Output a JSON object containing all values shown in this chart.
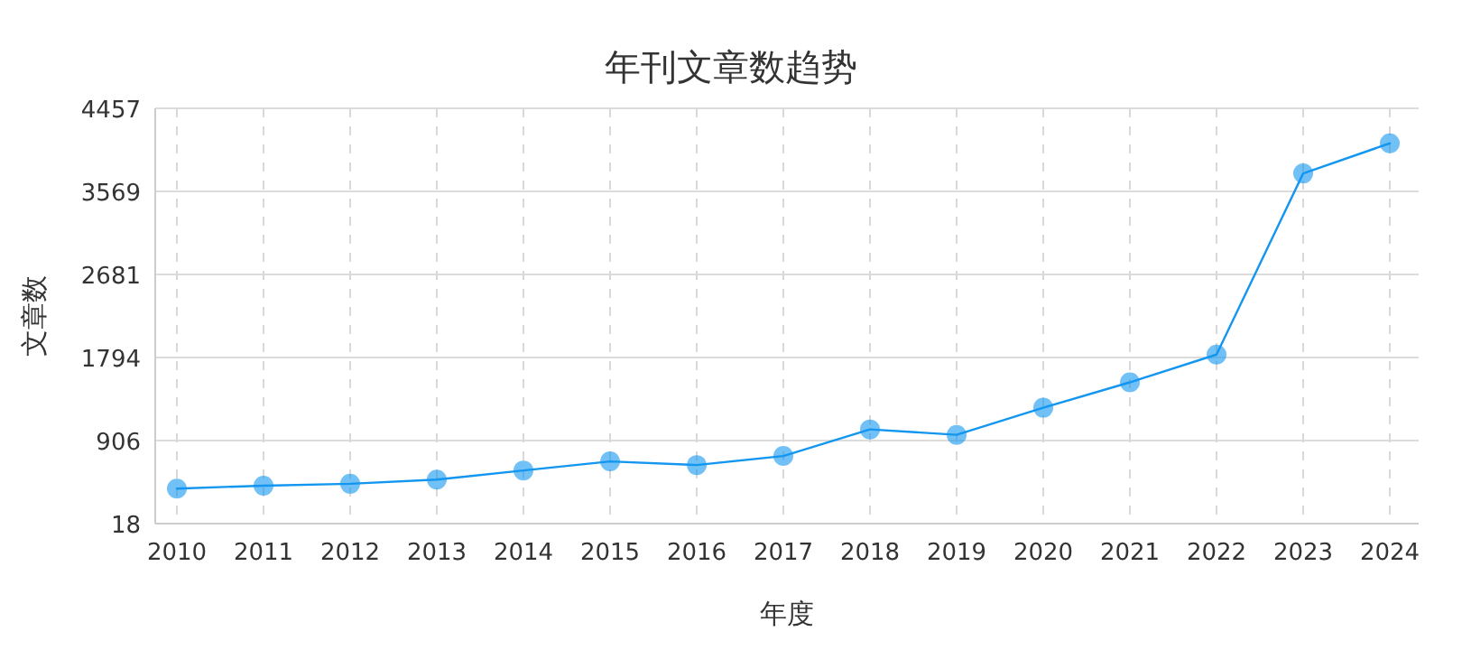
{
  "chart_data": {
    "type": "line",
    "title": "年刊文章数趋势",
    "xlabel": "年度",
    "ylabel": "文章数",
    "categories": [
      "2010",
      "2011",
      "2012",
      "2013",
      "2014",
      "2015",
      "2016",
      "2017",
      "2018",
      "2019",
      "2020",
      "2021",
      "2022",
      "2023",
      "2024"
    ],
    "series": [
      {
        "color": "#1296f0",
        "values": [
          392,
          424,
          444,
          489,
          586,
          683,
          644,
          741,
          1025,
          967,
          1257,
          1528,
          1825,
          3761,
          4083
        ]
      }
    ],
    "ylim": [
      18,
      4457
    ],
    "yticks": [
      18,
      906,
      1794,
      2681,
      3569,
      4457
    ],
    "grid": true,
    "marker": "circle",
    "line_style": "solid"
  }
}
